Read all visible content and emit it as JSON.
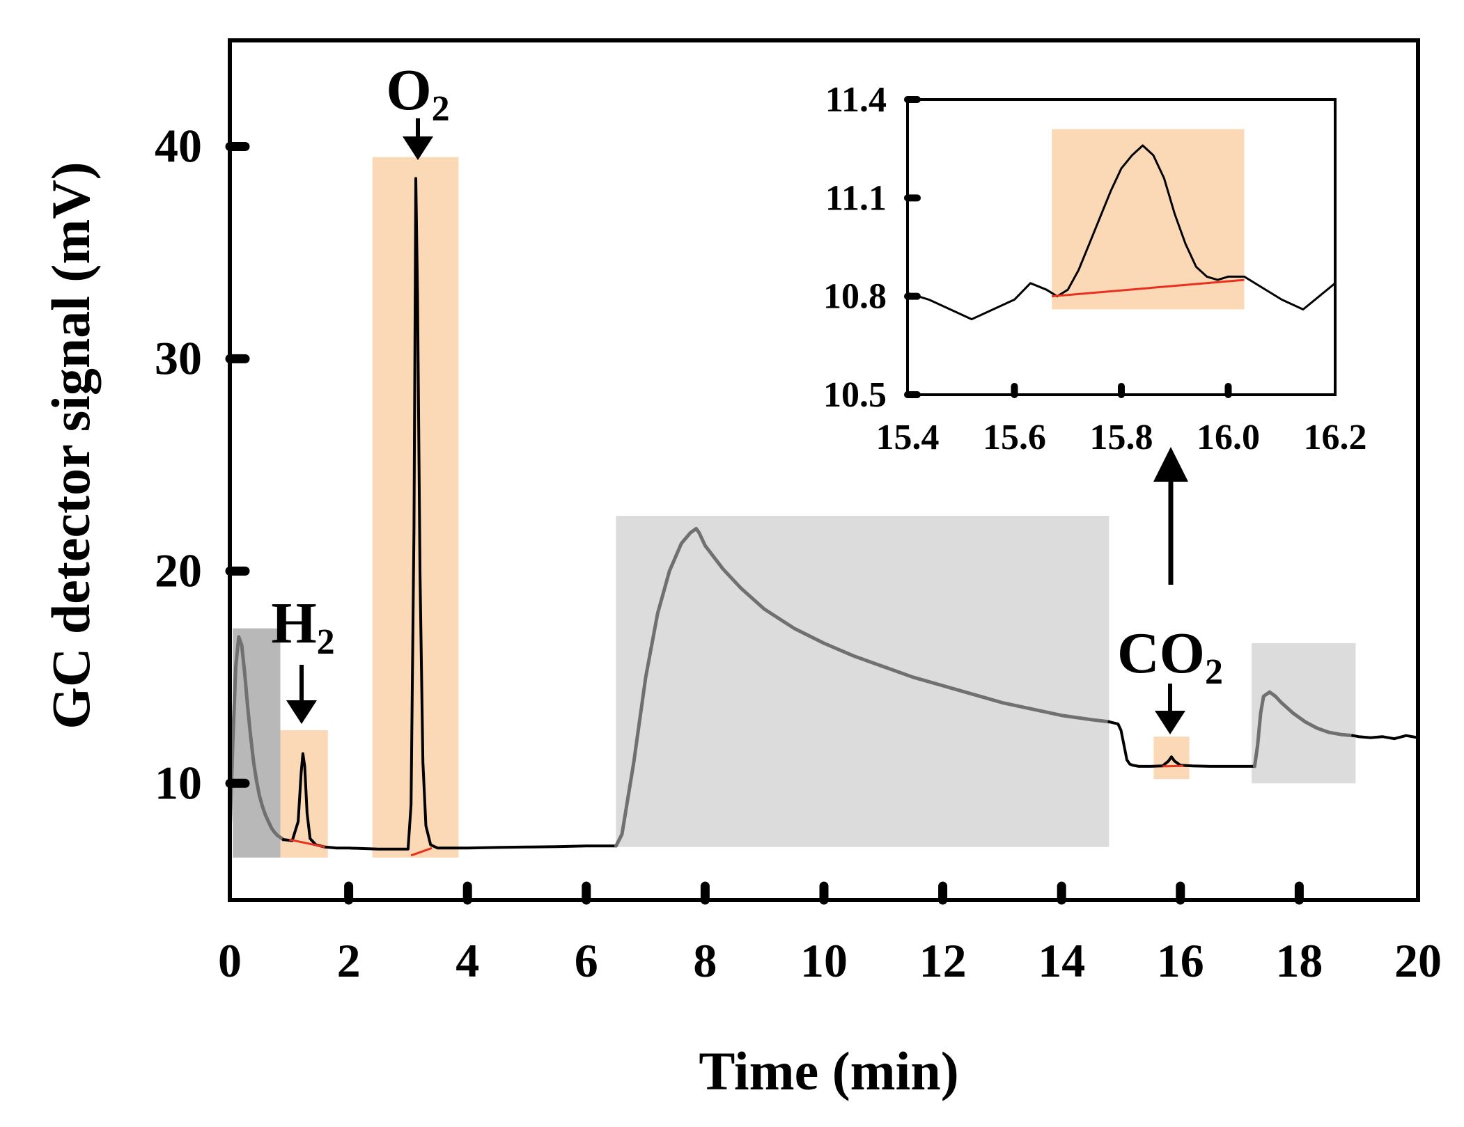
{
  "chart_data": {
    "type": "line",
    "ylabel": "GC detector signal (mV)",
    "xlabel": "Time (min)",
    "xlim": [
      0,
      20
    ],
    "ylim": [
      4.5,
      45
    ],
    "x_ticks": [
      0,
      2,
      4,
      6,
      8,
      10,
      12,
      14,
      16,
      18,
      20
    ],
    "y_ticks": [
      10,
      20,
      30,
      40
    ],
    "peak_labels": [
      {
        "id": "h2",
        "prefix": "H",
        "subscript": "2",
        "x": 1.25
      },
      {
        "id": "o2",
        "prefix": "O",
        "subscript": "2",
        "x": 3.2
      },
      {
        "id": "co2",
        "prefix": "CO",
        "subscript": "2",
        "x": 15.85
      }
    ],
    "colors": {
      "trace_black": "#000000",
      "trace_gray": "#707070",
      "baseline_red": "#e8301c",
      "highlight_orange": "#fcd9b6",
      "highlight_gray": "#dcdcdc",
      "highlight_gray_dark": "#b8b8b8"
    },
    "highlights": [
      {
        "kind": "gray_dark",
        "x": [
          0.05,
          0.85
        ],
        "y": [
          6.5,
          17.3
        ]
      },
      {
        "kind": "orange",
        "x": [
          0.85,
          1.65
        ],
        "y": [
          6.5,
          12.5
        ]
      },
      {
        "kind": "orange",
        "x": [
          2.4,
          3.85
        ],
        "y": [
          6.5,
          39.5
        ]
      },
      {
        "kind": "gray",
        "x": [
          6.5,
          14.8
        ],
        "y": [
          7.0,
          22.6
        ]
      },
      {
        "kind": "orange",
        "x": [
          15.55,
          16.15
        ],
        "y": [
          10.2,
          12.2
        ]
      },
      {
        "kind": "gray",
        "x": [
          17.2,
          18.95
        ],
        "y": [
          10.0,
          16.6
        ]
      }
    ],
    "series": [
      {
        "name": "signal_part1",
        "color_key": "trace_gray",
        "x": [
          0.0,
          0.05,
          0.1,
          0.15,
          0.2,
          0.25,
          0.3,
          0.35,
          0.4,
          0.45,
          0.5,
          0.55,
          0.6,
          0.65,
          0.7,
          0.75,
          0.8,
          0.85,
          0.9
        ],
        "y": [
          7.5,
          12.0,
          15.5,
          16.9,
          16.5,
          15.2,
          13.6,
          12.2,
          11.0,
          10.1,
          9.4,
          8.9,
          8.5,
          8.2,
          7.9,
          7.7,
          7.55,
          7.45,
          7.35
        ]
      },
      {
        "name": "signal_part2",
        "color_key": "trace_black",
        "x": [
          0.9,
          1.05,
          1.15,
          1.2,
          1.23,
          1.26,
          1.3,
          1.35,
          1.45,
          1.6,
          1.8,
          2.0,
          2.5,
          3.0,
          3.05,
          3.1,
          3.13,
          3.16,
          3.2,
          3.25,
          3.3,
          3.38,
          3.5,
          3.7,
          4.0,
          4.5,
          5.0,
          5.5,
          6.0,
          6.5
        ],
        "y": [
          7.35,
          7.3,
          8.2,
          10.5,
          11.4,
          10.8,
          8.6,
          7.4,
          7.1,
          7.0,
          6.95,
          6.95,
          6.9,
          6.9,
          9.0,
          22.0,
          38.5,
          33.0,
          20.0,
          11.0,
          8.0,
          7.1,
          6.95,
          6.95,
          6.95,
          6.98,
          7.0,
          7.02,
          7.05,
          7.05
        ]
      },
      {
        "name": "signal_part3",
        "color_key": "trace_gray",
        "x": [
          6.5,
          6.6,
          6.8,
          7.0,
          7.2,
          7.4,
          7.6,
          7.75,
          7.85,
          7.9,
          8.0,
          8.3,
          8.6,
          9.0,
          9.5,
          10.0,
          10.5,
          11.0,
          11.5,
          12.0,
          12.5,
          13.0,
          13.5,
          14.0,
          14.5,
          14.8
        ],
        "y": [
          7.05,
          7.6,
          11.0,
          15.0,
          18.0,
          20.0,
          21.3,
          21.8,
          22.0,
          21.8,
          21.2,
          20.1,
          19.2,
          18.2,
          17.3,
          16.6,
          16.0,
          15.5,
          15.0,
          14.6,
          14.2,
          13.8,
          13.5,
          13.2,
          13.0,
          12.9
        ]
      },
      {
        "name": "signal_part4",
        "color_key": "trace_black",
        "x": [
          14.8,
          14.95,
          15.0,
          15.05,
          15.1,
          15.15,
          15.2,
          15.3,
          15.5,
          15.7,
          15.8,
          15.85,
          15.9,
          16.0,
          16.2,
          16.5,
          17.0,
          17.25
        ],
        "y": [
          12.9,
          12.8,
          12.5,
          11.8,
          11.1,
          10.9,
          10.85,
          10.8,
          10.8,
          10.82,
          11.05,
          11.25,
          11.05,
          10.85,
          10.82,
          10.8,
          10.8,
          10.8
        ]
      },
      {
        "name": "signal_part5",
        "color_key": "trace_gray",
        "x": [
          17.25,
          17.3,
          17.35,
          17.4,
          17.5,
          17.6,
          17.7,
          17.9,
          18.1,
          18.3,
          18.5,
          18.7,
          18.9
        ],
        "y": [
          10.8,
          11.8,
          13.3,
          14.1,
          14.3,
          14.1,
          13.8,
          13.3,
          12.9,
          12.6,
          12.4,
          12.3,
          12.25
        ]
      },
      {
        "name": "signal_part6",
        "color_key": "trace_black",
        "x": [
          18.9,
          19.0,
          19.2,
          19.4,
          19.6,
          19.8,
          20.0
        ],
        "y": [
          12.25,
          12.2,
          12.15,
          12.2,
          12.1,
          12.25,
          12.15
        ]
      }
    ],
    "baselines": [
      {
        "x": [
          1.0,
          1.6
        ],
        "y": [
          7.35,
          7.0
        ]
      },
      {
        "x": [
          3.05,
          3.4
        ],
        "y": [
          6.6,
          6.95
        ]
      },
      {
        "x": [
          15.7,
          16.05
        ],
        "y": [
          10.8,
          10.82
        ]
      }
    ],
    "inset": {
      "xlim": [
        15.4,
        16.2
      ],
      "ylim": [
        10.5,
        11.4
      ],
      "x_ticks": [
        "15.4",
        "15.6",
        "15.8",
        "16.0",
        "16.2"
      ],
      "y_ticks": [
        "10.5",
        "10.8",
        "11.1",
        "11.4"
      ],
      "highlight": {
        "x": [
          15.67,
          16.03
        ],
        "y": [
          10.76,
          11.31
        ]
      },
      "series": {
        "x": [
          15.4,
          15.44,
          15.48,
          15.52,
          15.56,
          15.6,
          15.63,
          15.66,
          15.68,
          15.7,
          15.72,
          15.74,
          15.76,
          15.78,
          15.8,
          15.82,
          15.84,
          15.86,
          15.88,
          15.9,
          15.92,
          15.94,
          15.96,
          15.98,
          16.0,
          16.03,
          16.06,
          16.1,
          16.14,
          16.17,
          16.2
        ],
        "y": [
          10.81,
          10.79,
          10.76,
          10.73,
          10.76,
          10.79,
          10.84,
          10.82,
          10.8,
          10.82,
          10.88,
          10.96,
          11.04,
          11.12,
          11.19,
          11.23,
          11.26,
          11.23,
          11.16,
          11.05,
          10.96,
          10.89,
          10.86,
          10.85,
          10.86,
          10.86,
          10.83,
          10.79,
          10.76,
          10.8,
          10.84
        ]
      },
      "baseline": {
        "x": [
          15.67,
          16.03
        ],
        "y": [
          10.8,
          10.85
        ]
      }
    }
  }
}
